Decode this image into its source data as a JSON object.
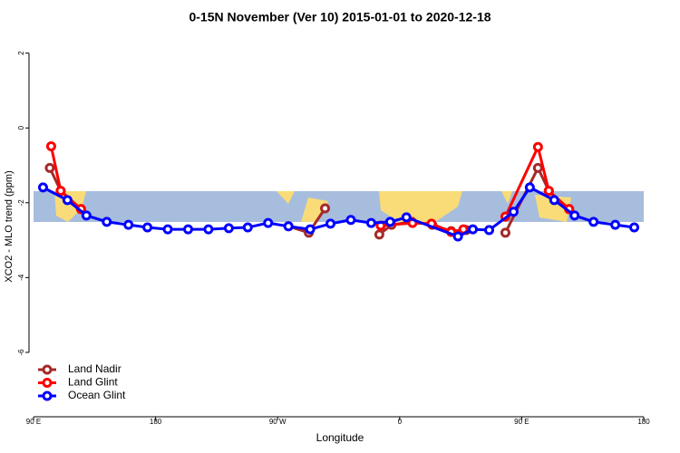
{
  "chart_data": {
    "type": "line",
    "title": "0-15N November (Ver 10)   2015-01-01 to 2020-12-18",
    "x_label": "Longitude",
    "y_label": "XCO2 - MLO trend (ppm)",
    "xlim": [
      90,
      540
    ],
    "ylim": [
      -7.6,
      2.5
    ],
    "xticks": [
      {
        "value": 90,
        "label": "90 E"
      },
      180,
      {
        "value": 270,
        "label": "90 W"
      },
      {
        "value": 360,
        "label": "0"
      },
      {
        "value": 450,
        "label": "90 E"
      },
      {
        "value": 540,
        "label": "180"
      }
    ],
    "yticks": [
      2,
      0,
      -2,
      -4,
      -6
    ],
    "legend": "bottom-left",
    "series": [
      {
        "name": "Land Nadir",
        "color": "#a52a2a",
        "x": [
          102,
          110,
          125,
          null,
          278,
          293,
          305,
          null,
          345,
          354,
          369,
          384,
          398,
          409,
          null,
          438,
          462,
          470,
          485
        ],
        "values": [
          -1.07,
          -1.68,
          -2.17,
          null,
          -2.63,
          -2.8,
          -2.15,
          null,
          -2.85,
          -2.59,
          -2.51,
          -2.59,
          -2.76,
          -2.73,
          null,
          -2.8,
          -1.07,
          -1.68,
          -2.17
        ]
      },
      {
        "name": "Land Glint",
        "color": "#ff0000",
        "x": [
          103,
          110,
          125,
          null,
          346,
          369.5,
          383.5,
          398,
          407,
          null,
          438,
          462,
          470,
          485
        ],
        "values": [
          -0.49,
          -1.68,
          -2.17,
          null,
          -2.61,
          -2.54,
          -2.56,
          -2.78,
          -2.71,
          null,
          -2.37,
          -0.51,
          -1.68,
          -2.17
        ]
      },
      {
        "name": "Ocean Glint",
        "color": "#0000ff",
        "x": [
          97,
          115,
          129,
          144,
          160,
          174,
          189,
          204,
          219,
          234,
          248,
          263,
          278,
          294,
          309,
          324,
          339,
          353,
          365,
          403,
          414,
          426,
          444,
          456,
          474,
          489,
          503,
          519,
          533
        ],
        "values": [
          -1.59,
          -1.93,
          -2.34,
          -2.51,
          -2.59,
          -2.66,
          -2.71,
          -2.71,
          -2.71,
          -2.68,
          -2.66,
          -2.54,
          -2.63,
          -2.71,
          -2.56,
          -2.46,
          -2.54,
          -2.51,
          -2.39,
          -2.9,
          -2.71,
          -2.73,
          -2.24,
          -1.59,
          -1.93,
          -2.34,
          -2.51,
          -2.59,
          -2.66
        ]
      }
    ]
  }
}
